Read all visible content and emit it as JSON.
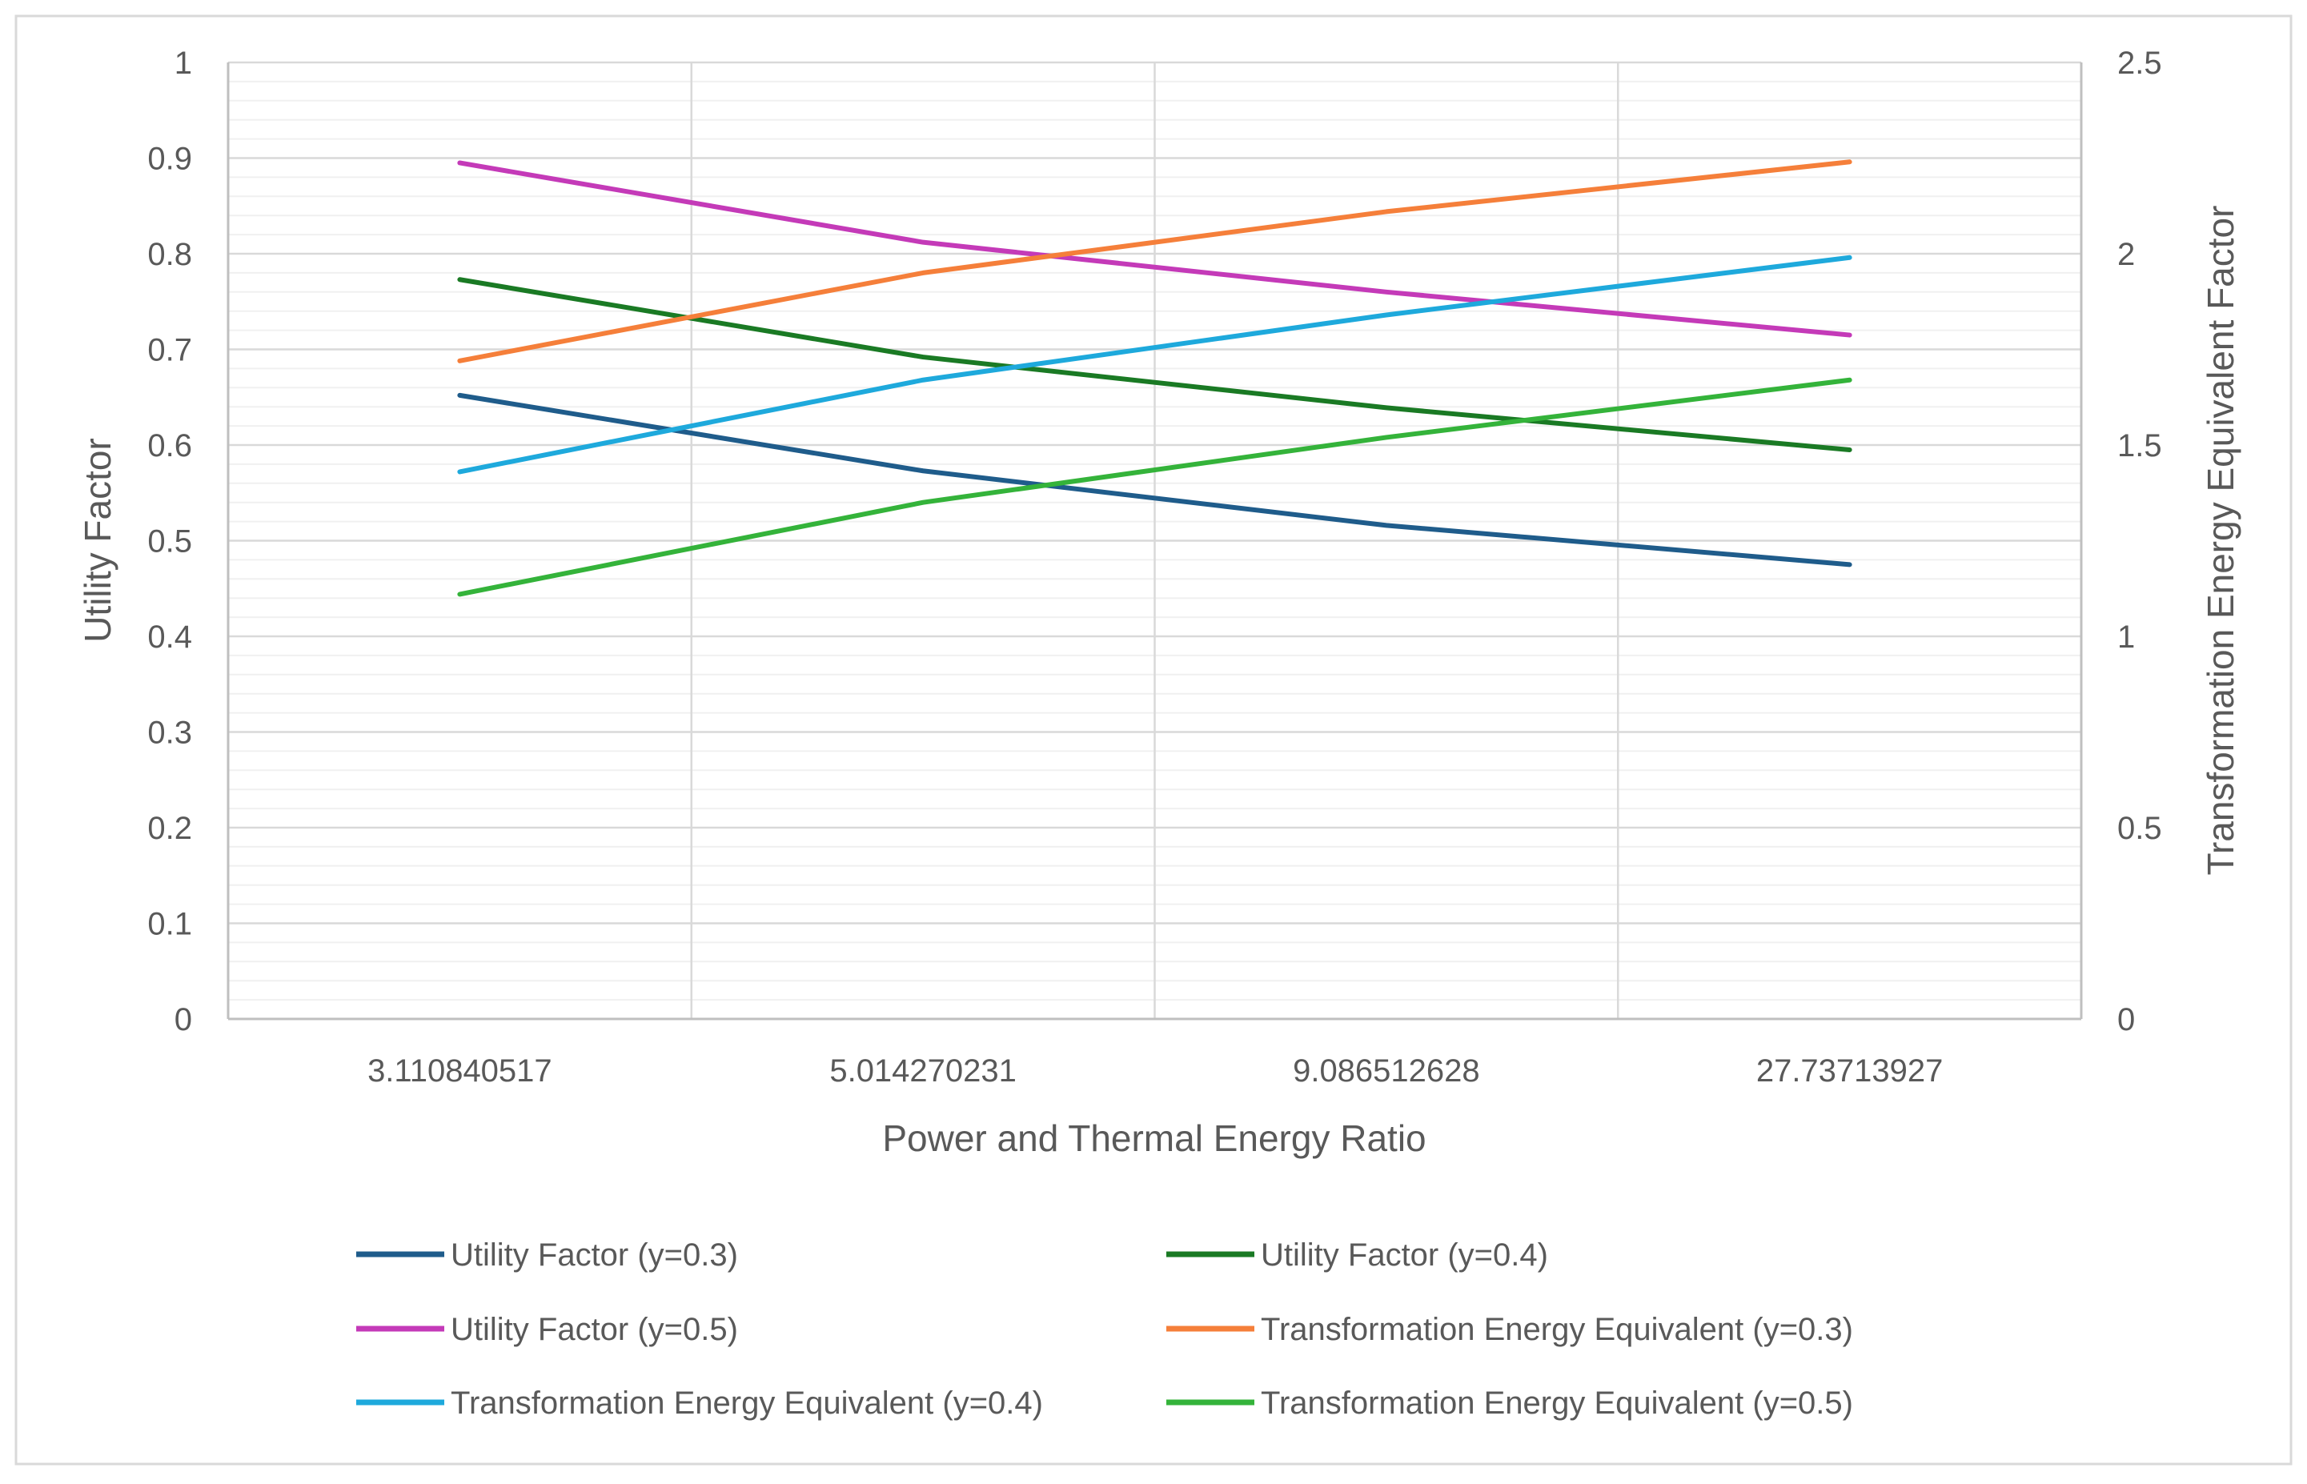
{
  "chart_data": {
    "type": "line",
    "xlabel": "Power and Thermal Energy Ratio",
    "ylabel": "Utility Factor",
    "y2label": "Transformation Energy Equivalent Factor",
    "categories": [
      "3.110840517",
      "5.014270231",
      "9.086512628",
      "27.73713927"
    ],
    "ylim": [
      0,
      1
    ],
    "yticks": [
      "0",
      "0.1",
      "0.2",
      "0.3",
      "0.4",
      "0.5",
      "0.6",
      "0.7",
      "0.8",
      "0.9",
      "1"
    ],
    "y2lim": [
      0,
      2.5
    ],
    "y2ticks": [
      "0",
      "0.5",
      "1",
      "1.5",
      "2",
      "2.5"
    ],
    "grid": true,
    "legend_position": "bottom",
    "series": [
      {
        "name": "Utility Factor (y=0.3)",
        "axis": "left",
        "color": "#1f5c8b",
        "values": [
          0.652,
          0.573,
          0.516,
          0.475
        ]
      },
      {
        "name": "Utility Factor (y=0.4)",
        "axis": "left",
        "color": "#1a7a24",
        "values": [
          0.773,
          0.692,
          0.639,
          0.595
        ]
      },
      {
        "name": "Utility Factor (y=0.5)",
        "axis": "left",
        "color": "#c43ab8",
        "values": [
          0.895,
          0.812,
          0.76,
          0.715
        ]
      },
      {
        "name": "Transformation Energy Equivalent (y=0.3)",
        "axis": "right",
        "color": "#f57f3a",
        "values": [
          1.72,
          1.95,
          2.11,
          2.24
        ]
      },
      {
        "name": "Transformation Energy Equivalent (y=0.4)",
        "axis": "right",
        "color": "#1ea9dc",
        "values": [
          1.43,
          1.67,
          1.84,
          1.99
        ]
      },
      {
        "name": "Transformation Energy Equivalent (y=0.5)",
        "axis": "right",
        "color": "#34b33a",
        "values": [
          1.11,
          1.35,
          1.52,
          1.67
        ]
      }
    ]
  }
}
